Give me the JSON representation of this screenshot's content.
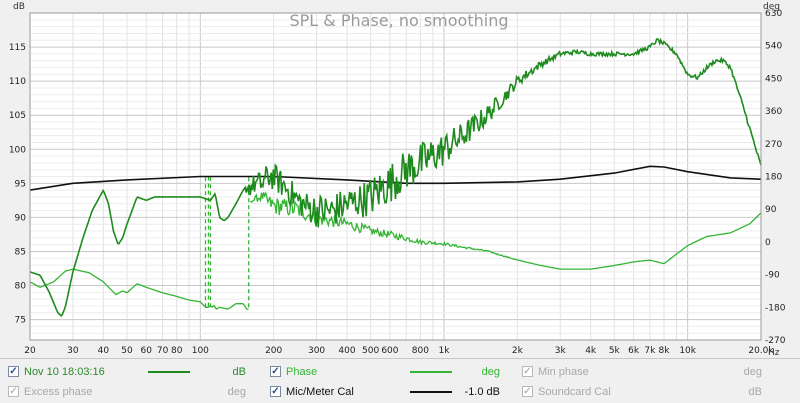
{
  "chart_data": {
    "type": "line",
    "title": "SPL & Phase, no smoothing",
    "y_unit_left": "dB",
    "y_unit_right": "deg",
    "x_unit": "Hz",
    "x_scale": "log",
    "xlim": [
      20,
      20000
    ],
    "ylim": [
      72,
      120
    ],
    "y2lim": [
      -270,
      630
    ],
    "grid": true,
    "y_ticks": [
      "75",
      "80",
      "85",
      "90",
      "95",
      "100",
      "105",
      "110",
      "115"
    ],
    "y2_ticks": [
      "-270",
      "-180",
      "-90",
      "0",
      "90",
      "180",
      "270",
      "360",
      "450",
      "540",
      "630"
    ],
    "x_ticks": [
      {
        "v": 20,
        "label": "20"
      },
      {
        "v": 30,
        "label": "30"
      },
      {
        "v": 40,
        "label": "40"
      },
      {
        "v": 50,
        "label": "50"
      },
      {
        "v": 60,
        "label": "60"
      },
      {
        "v": 70,
        "label": "70"
      },
      {
        "v": 80,
        "label": "80"
      },
      {
        "v": 100,
        "label": "100"
      },
      {
        "v": 200,
        "label": "200"
      },
      {
        "v": 300,
        "label": "300"
      },
      {
        "v": 400,
        "label": "400"
      },
      {
        "v": 500,
        "label": "500"
      },
      {
        "v": 600,
        "label": "600"
      },
      {
        "v": 800,
        "label": "800"
      },
      {
        "v": 1000,
        "label": "1k"
      },
      {
        "v": 2000,
        "label": "2k"
      },
      {
        "v": 3000,
        "label": "3k"
      },
      {
        "v": 4000,
        "label": "4k"
      },
      {
        "v": 5000,
        "label": "5k"
      },
      {
        "v": 6000,
        "label": "6k"
      },
      {
        "v": 7000,
        "label": "7k"
      },
      {
        "v": 8000,
        "label": "8k"
      },
      {
        "v": 10000,
        "label": "10k"
      },
      {
        "v": 20000,
        "label": "20.0k"
      }
    ],
    "series": [
      {
        "name": "Nov 10 18:03:16",
        "unit": "dB",
        "color": "#1e8a1e",
        "x": [
          20,
          22,
          24,
          26,
          27,
          28,
          30,
          33,
          36,
          40,
          42,
          44,
          46,
          48,
          50,
          55,
          60,
          65,
          70,
          80,
          90,
          100,
          110,
          115,
          120,
          125,
          130,
          140,
          150,
          160,
          170,
          180,
          190,
          200,
          230,
          260,
          300,
          350,
          400,
          450,
          500,
          600,
          700,
          800,
          1000,
          1200,
          1500,
          1800,
          2000,
          2500,
          3000,
          3500,
          4000,
          5000,
          6000,
          7000,
          7500,
          8000,
          9000,
          10000,
          11000,
          12000,
          13000,
          14000,
          15000,
          17000,
          20000
        ],
        "y": [
          82,
          81.5,
          79,
          76,
          75.5,
          77,
          82,
          87,
          91,
          94,
          92,
          88,
          86,
          87,
          89,
          93,
          92.5,
          93,
          93,
          93,
          93,
          93,
          92.5,
          93.5,
          90,
          89.5,
          90,
          92,
          94,
          94.5,
          95,
          95,
          96,
          96,
          94,
          92,
          91,
          91,
          92,
          92.5,
          93,
          95,
          97,
          98,
          100,
          102,
          105,
          108,
          110,
          112.5,
          114,
          114.3,
          114,
          114,
          114,
          115,
          116,
          115.5,
          114,
          111,
          110.5,
          112,
          113,
          113,
          112,
          106,
          97.5
        ],
        "noise": [
          0,
          0,
          0,
          0,
          0,
          0,
          0,
          0,
          0,
          0,
          0,
          0,
          0,
          0,
          0,
          0,
          0,
          0,
          0,
          0,
          0,
          0,
          0,
          0,
          0,
          0,
          0,
          0,
          0,
          1.5,
          1.5,
          2,
          2,
          2,
          2,
          2,
          2.5,
          2.5,
          2.5,
          2.5,
          3,
          3,
          3,
          3,
          2.5,
          2,
          1.5,
          1,
          0.8,
          0.5,
          0.4,
          0.3,
          0.3,
          0.3,
          0.3,
          0.3,
          0.3,
          0.3,
          0.3,
          0.3,
          0.3,
          0.3,
          0.3,
          0.3,
          0.3,
          0.3,
          0.3
        ]
      },
      {
        "name": "Phase",
        "unit": "deg",
        "axis": "right",
        "color": "#33b533",
        "x": [
          20,
          22,
          25,
          28,
          30,
          35,
          40,
          45,
          48,
          50,
          55,
          60,
          70,
          80,
          90,
          100,
          105,
          108,
          110,
          112,
          114,
          116,
          120,
          130,
          140,
          150,
          155,
          158,
          160,
          170,
          180,
          190,
          200,
          250,
          300,
          400,
          500,
          600,
          700,
          800,
          1000,
          1200,
          1500,
          2000,
          2500,
          3000,
          4000,
          5000,
          6000,
          7000,
          8000,
          10000,
          12000,
          15000,
          18000,
          20000
        ],
        "y": [
          -110,
          -125,
          -110,
          -80,
          -75,
          -85,
          -110,
          -145,
          -135,
          -140,
          -115,
          -125,
          -140,
          -150,
          -160,
          -165,
          -180,
          -180,
          -175,
          -180,
          -175,
          -185,
          -180,
          -185,
          -170,
          -170,
          -185,
          -185,
          110,
          120,
          125,
          110,
          100,
          90,
          65,
          50,
          30,
          20,
          10,
          0,
          -5,
          -15,
          -25,
          -50,
          -65,
          -75,
          -75,
          -65,
          -55,
          -50,
          -60,
          -10,
          15,
          25,
          50,
          80
        ],
        "noise": [
          0,
          0,
          0,
          0,
          0,
          0,
          0,
          0,
          0,
          0,
          0,
          0,
          0,
          0,
          0,
          0,
          0,
          0,
          0,
          0,
          0,
          0,
          0,
          0,
          0,
          0,
          0,
          0,
          0,
          10,
          15,
          20,
          25,
          25,
          20,
          15,
          12,
          10,
          8,
          6,
          4,
          3,
          2,
          1,
          0,
          0,
          0,
          0,
          0,
          0,
          0,
          0,
          0,
          0,
          0,
          0
        ]
      },
      {
        "name": "Mic/Meter Cal",
        "unit": "dB",
        "color": "#111111",
        "x": [
          20,
          30,
          50,
          100,
          200,
          400,
          700,
          1000,
          2000,
          3000,
          5000,
          7000,
          8000,
          10000,
          15000,
          20000
        ],
        "y": [
          94,
          95,
          95.5,
          96,
          96,
          95.5,
          95,
          95,
          95.2,
          95.6,
          96.5,
          97.5,
          97.4,
          96.7,
          95.8,
          95.6
        ]
      }
    ],
    "phase_wrap_segments": [
      {
        "x": 105,
        "y_from": -180,
        "y_to": 180
      },
      {
        "x": 108,
        "y_from": 180,
        "y_to": -180
      },
      {
        "x": 110,
        "y_from": -180,
        "y_to": 180
      },
      {
        "x": 158,
        "y_from": -180,
        "y_to": 180
      }
    ]
  },
  "legend": {
    "items": [
      {
        "label": "Nov 10 18:03:16",
        "unit": "dB",
        "checked": true,
        "active": true,
        "color": "#1e8a1e"
      },
      {
        "label": "Phase",
        "unit": "deg",
        "checked": true,
        "active": true,
        "color": "#33b533"
      },
      {
        "label": "Min phase",
        "unit": "deg",
        "checked": true,
        "active": false,
        "color": ""
      },
      {
        "label": "Excess phase",
        "unit": "deg",
        "checked": true,
        "active": false,
        "color": ""
      },
      {
        "label": "Mic/Meter Cal",
        "unit": "-1.0 dB",
        "checked": true,
        "active": true,
        "color": "#111111"
      },
      {
        "label": "Soundcard Cal",
        "unit": "dB",
        "checked": true,
        "active": false,
        "color": ""
      }
    ]
  }
}
